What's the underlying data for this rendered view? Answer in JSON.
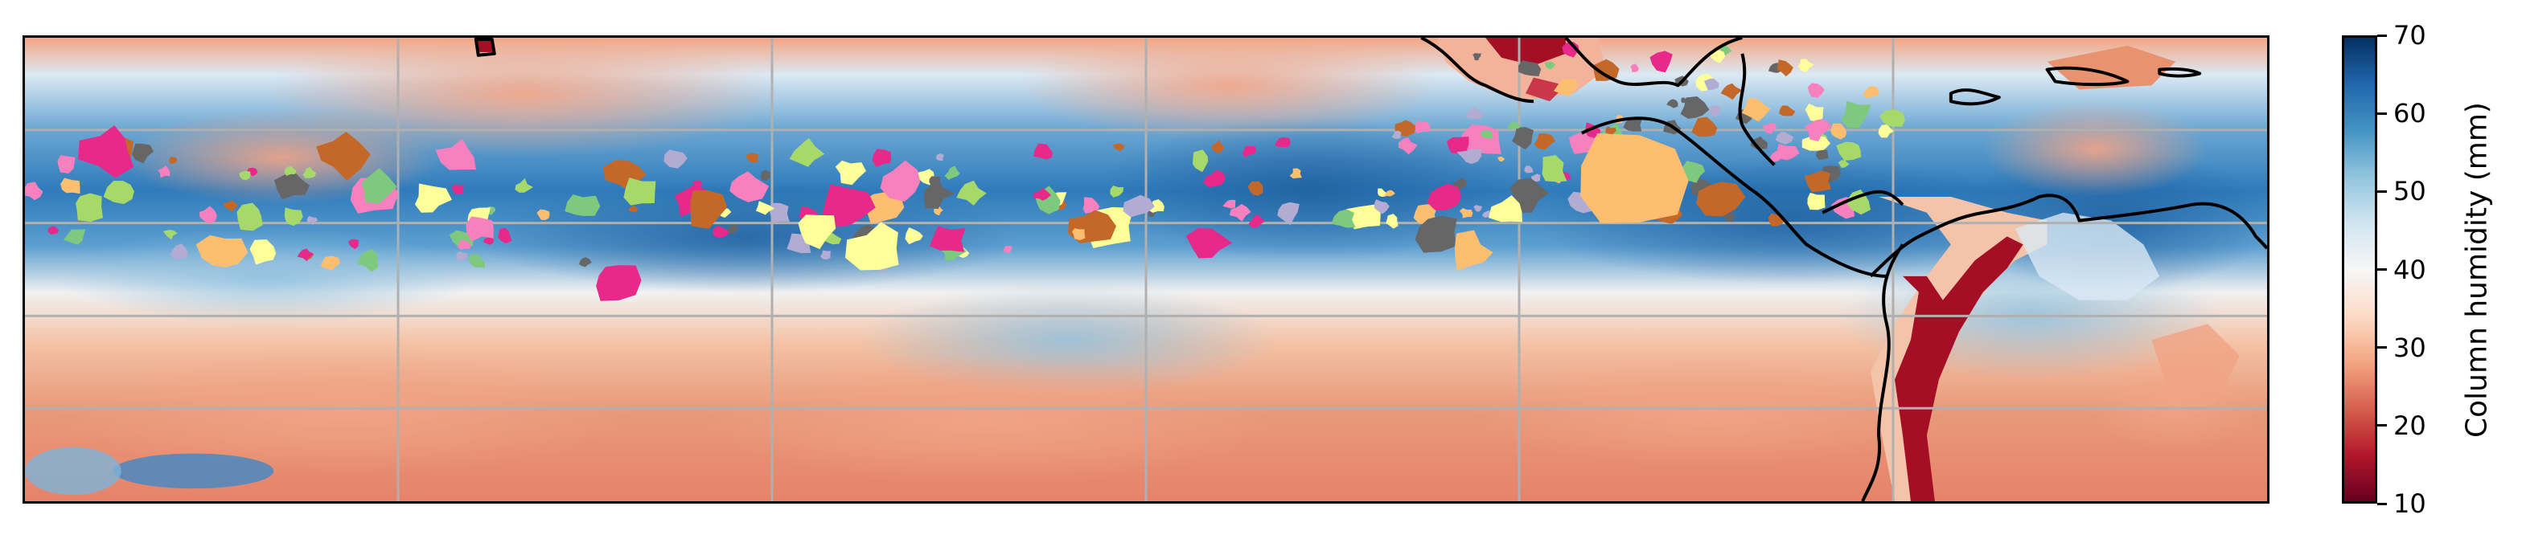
{
  "colorbar": {
    "label": "Column humidity (mm)",
    "ticks": [
      "70",
      "60",
      "50",
      "40",
      "30",
      "20",
      "10"
    ],
    "min": 10,
    "max": 70,
    "colors": [
      "#67001f",
      "#b2182b",
      "#d6604d",
      "#f4a582",
      "#fddbc7",
      "#f7f7f7",
      "#d1e5f0",
      "#92c5de",
      "#4393c3",
      "#2166ac",
      "#053061"
    ]
  },
  "map": {
    "grid_color": "#b0b0b0",
    "coastline_color": "#000000",
    "land_colors": {
      "dry": "#a50f25",
      "mid": "#f4a582"
    },
    "object_colors": [
      "#f781bf",
      "#e7298a",
      "#ffff99",
      "#fdbf6f",
      "#b2abd2",
      "#7fc97f",
      "#666666",
      "#c4682a",
      "#a6d96a"
    ]
  }
}
